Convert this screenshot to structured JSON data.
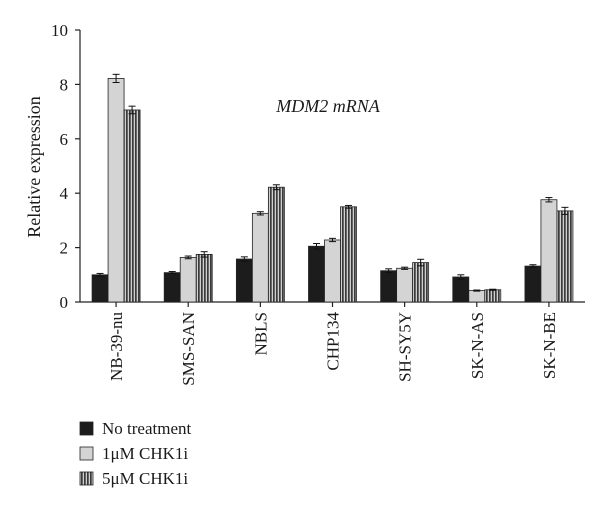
{
  "chart_data": {
    "type": "bar",
    "title": "",
    "annotation": "MDM2 mRNA",
    "xlabel": "",
    "ylabel": "Relative expression",
    "ylim": [
      0,
      10
    ],
    "yticks": [
      "0",
      "2",
      "4",
      "6",
      "8",
      "10"
    ],
    "grid": false,
    "legend_position": "bottom-left",
    "categories": [
      "NB-39-nu",
      "SMS-SAN",
      "NBLS",
      "CHP134",
      "SH-SY5Y",
      "SK-N-AS",
      "SK-N-BE"
    ],
    "series": [
      {
        "name": "No treatment",
        "color": "#1c1c1c",
        "pattern": "solid-dark",
        "values": [
          1.0,
          1.08,
          1.58,
          2.05,
          1.15,
          0.92,
          1.32
        ],
        "errors": [
          0.05,
          0.04,
          0.08,
          0.1,
          0.07,
          0.08,
          0.05
        ]
      },
      {
        "name": "1μM CHK1i",
        "color": "#d4d4d4",
        "pattern": "solid-light",
        "values": [
          8.22,
          1.64,
          3.26,
          2.28,
          1.24,
          0.42,
          3.76
        ],
        "errors": [
          0.15,
          0.05,
          0.06,
          0.06,
          0.04,
          0.02,
          0.08
        ]
      },
      {
        "name": "5μM CHK1i",
        "color": "#6a6a6a",
        "pattern": "vertical-stripes",
        "values": [
          7.06,
          1.75,
          4.22,
          3.5,
          1.45,
          0.45,
          3.35
        ],
        "errors": [
          0.14,
          0.1,
          0.09,
          0.05,
          0.12,
          0.02,
          0.13
        ]
      }
    ]
  }
}
